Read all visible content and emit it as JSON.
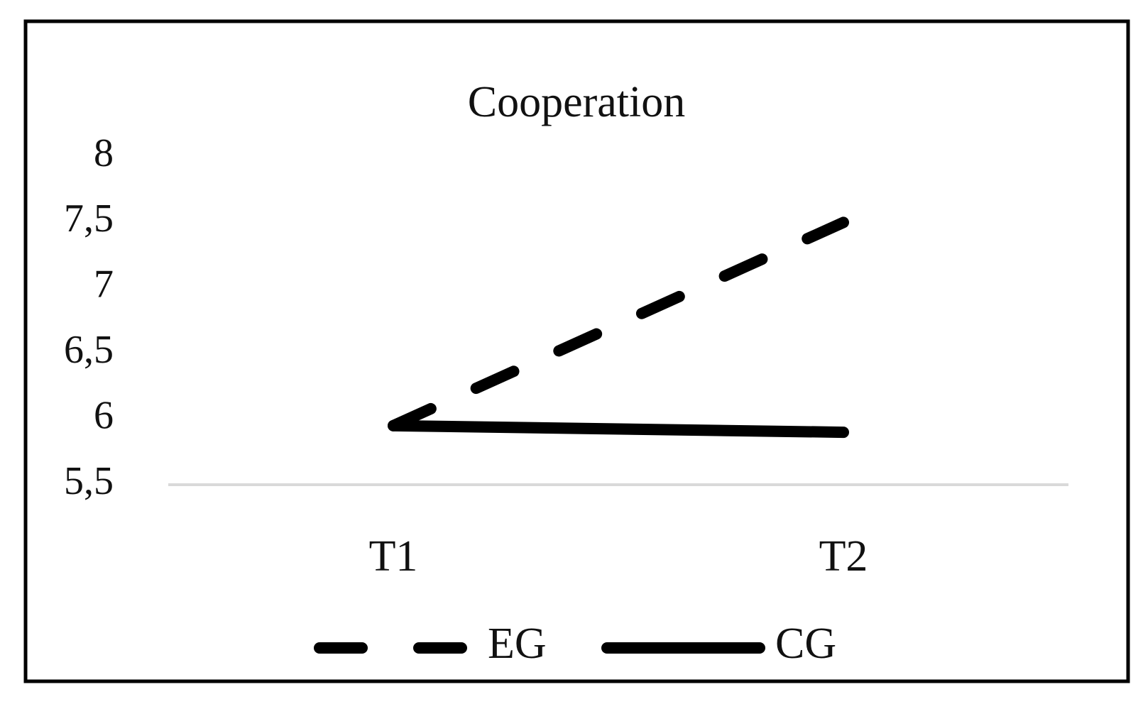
{
  "chart_data": {
    "type": "line",
    "title": "Cooperation",
    "categories": [
      "T1",
      "T2"
    ],
    "series": [
      {
        "name": "EG",
        "color": "#000000",
        "line_style": "dashed",
        "values": [
          5.95,
          7.5
        ]
      },
      {
        "name": "CG",
        "color": "#000000",
        "line_style": "solid",
        "values": [
          5.95,
          5.9
        ]
      }
    ],
    "ylim": [
      5.5,
      8
    ],
    "yticks": [
      {
        "value": 5.5,
        "label": "5,5"
      },
      6,
      {
        "value": 6.5,
        "label": "6,5"
      },
      7,
      {
        "value": 7.5,
        "label": "7,5"
      },
      8
    ],
    "grid": false,
    "legend": "bottom"
  }
}
